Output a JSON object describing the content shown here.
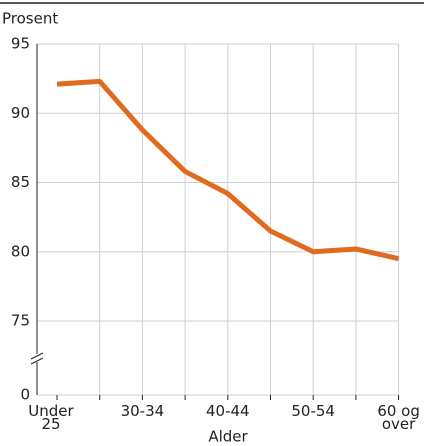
{
  "chart_data": {
    "type": "line",
    "y_label": "Prosent",
    "x_label": "Alder",
    "categories": [
      "Under\n25",
      null,
      "30-34",
      null,
      "40-44",
      null,
      "50-54",
      null,
      "60 og\nover"
    ],
    "series": [
      {
        "name": null,
        "color": "#e06a1f",
        "values": [
          92.1,
          92.3,
          88.8,
          85.8,
          84.2,
          81.5,
          80.0,
          80.2,
          79.5
        ]
      }
    ],
    "ylim": [
      0,
      95
    ],
    "yticks": [
      0,
      75,
      80,
      85,
      90,
      95
    ],
    "axis_break": [
      0,
      75
    ],
    "grid": true
  }
}
